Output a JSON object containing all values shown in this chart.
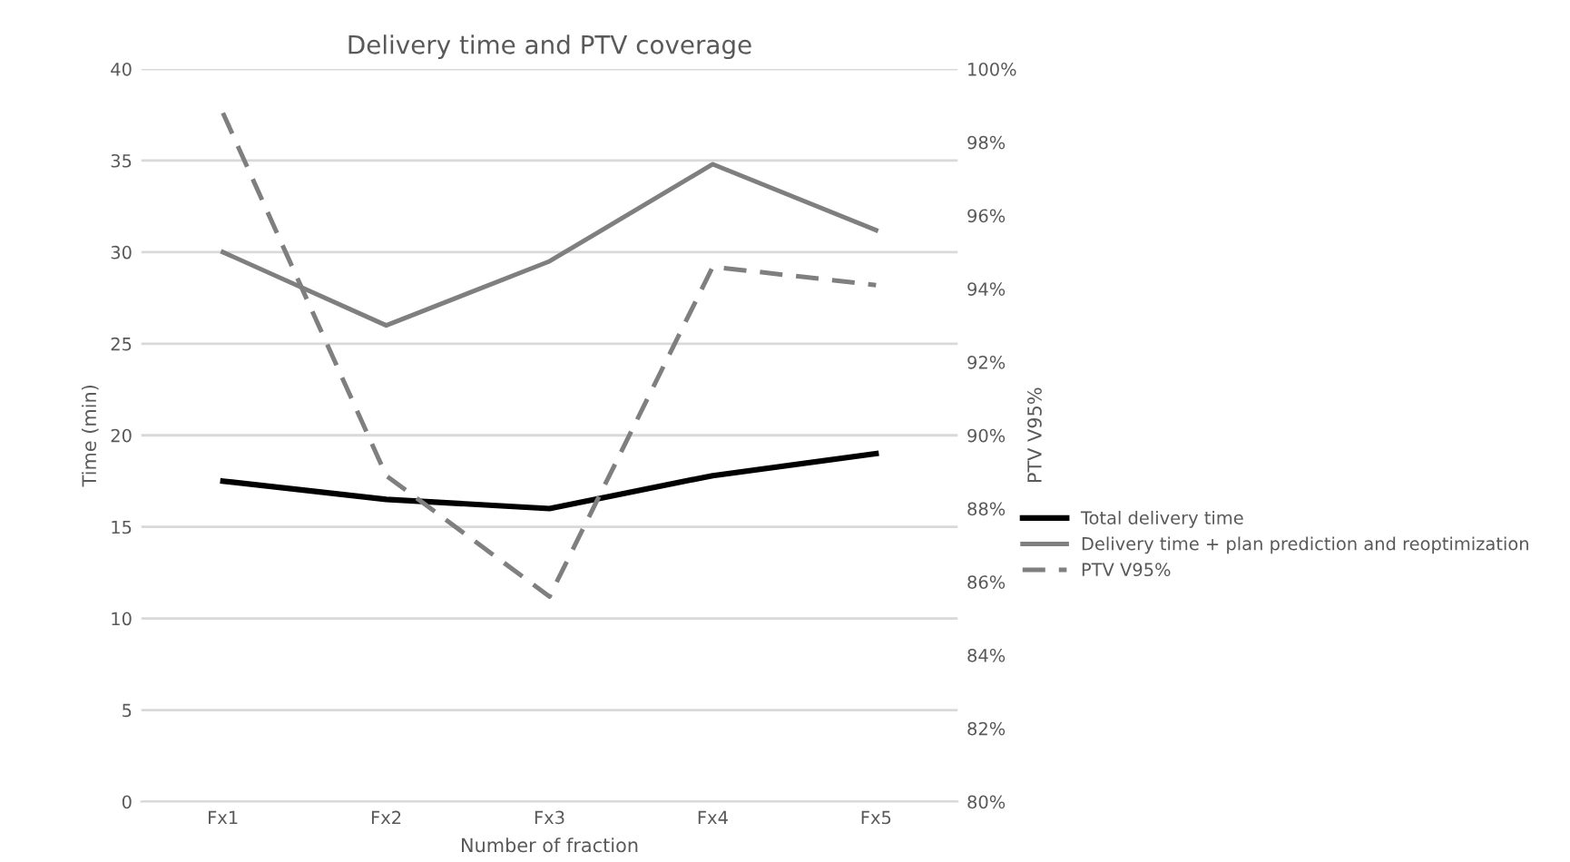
{
  "chart_data": {
    "type": "line",
    "title": "Delivery time and PTV coverage",
    "xlabel": "Number of fraction",
    "ylabel": "Time (min)",
    "y2label": "PTV V95%",
    "categories": [
      "Fx1",
      "Fx2",
      "Fx3",
      "Fx4",
      "Fx5"
    ],
    "series": [
      {
        "name": "Total delivery time",
        "color": "#000000",
        "values": [
          17.5,
          16.5,
          16,
          17.8,
          19
        ],
        "line_style": "solid"
      },
      {
        "name": "Delivery time + plan prediction and reoptimization",
        "color": "#7f7f7f",
        "values": [
          30,
          26,
          29.5,
          34.8,
          31.2
        ],
        "line_style": "solid"
      },
      {
        "name": "PTV V95%",
        "color": "#7f7f7f",
        "values": [
          98.8,
          88.9,
          85.6,
          94.6,
          94.1
        ],
        "axis": "y2",
        "line_style": "dashed"
      }
    ],
    "ylim": [
      0,
      40
    ],
    "yticks": [
      0,
      5,
      10,
      15,
      20,
      25,
      30,
      35,
      40
    ],
    "y2lim": [
      80,
      100
    ],
    "y2ticks": [
      {
        "value": 80,
        "label": "80%"
      },
      {
        "value": 82,
        "label": "82%"
      },
      {
        "value": 84,
        "label": "84%"
      },
      {
        "value": 86,
        "label": "86%"
      },
      {
        "value": 88,
        "label": "88%"
      },
      {
        "value": 90,
        "label": "90%"
      },
      {
        "value": 92,
        "label": "92%"
      },
      {
        "value": 94,
        "label": "94%"
      },
      {
        "value": 96,
        "label": "96%"
      },
      {
        "value": 98,
        "label": "98%"
      },
      {
        "value": 100,
        "label": "100%"
      }
    ],
    "grid": "y",
    "legend": "right",
    "marker": "none"
  }
}
